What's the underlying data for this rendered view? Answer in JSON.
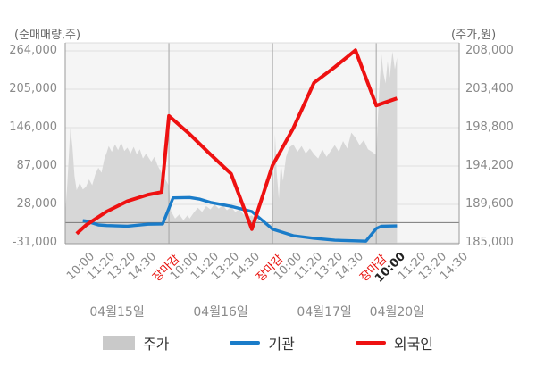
{
  "chart_data": {
    "type": "mixed",
    "note": "x is a continuous tick index: 19 labeled ticks (5 per day, last day partial); day separators after each market close",
    "x_ticks": [
      {
        "label": "10:00",
        "type": "time"
      },
      {
        "label": "11:20",
        "type": "time"
      },
      {
        "label": "13:20",
        "type": "time"
      },
      {
        "label": "14:30",
        "type": "time"
      },
      {
        "label": "장마감",
        "type": "close"
      },
      {
        "label": "10:00",
        "type": "time"
      },
      {
        "label": "11:20",
        "type": "time"
      },
      {
        "label": "13:20",
        "type": "time"
      },
      {
        "label": "14:30",
        "type": "time"
      },
      {
        "label": "장마감",
        "type": "close"
      },
      {
        "label": "10:00",
        "type": "time"
      },
      {
        "label": "11:20",
        "type": "time"
      },
      {
        "label": "13:20",
        "type": "time"
      },
      {
        "label": "14:30",
        "type": "time"
      },
      {
        "label": "장마감",
        "type": "close"
      },
      {
        "label": "10:00",
        "type": "current"
      },
      {
        "label": "11:20",
        "type": "time"
      },
      {
        "label": "13:20",
        "type": "time"
      },
      {
        "label": "14:30",
        "type": "time"
      }
    ],
    "day_separators": [
      5,
      10,
      15
    ],
    "day_labels": [
      {
        "label": "04월15일",
        "center": 2.5
      },
      {
        "label": "04월16일",
        "center": 7.5
      },
      {
        "label": "04월17일",
        "center": 12.5
      },
      {
        "label": "04월20일",
        "center": 16
      }
    ],
    "left_axis": {
      "title": "(순매매량,주)",
      "ticks": [
        {
          "label": "264,000",
          "value": 264000
        },
        {
          "label": "205,000",
          "value": 205000
        },
        {
          "label": "146,000",
          "value": 146000
        },
        {
          "label": "87,000",
          "value": 87000
        },
        {
          "label": "28,000",
          "value": 28000
        },
        {
          "label": "-31,000",
          "value": -31000
        }
      ],
      "zero_line": 0
    },
    "right_axis": {
      "title": "(주가,원)",
      "ticks": [
        {
          "label": "208,000",
          "value": 208000
        },
        {
          "label": "203,400",
          "value": 203400
        },
        {
          "label": "198,800",
          "value": 198800
        },
        {
          "label": "194,200",
          "value": 194200
        },
        {
          "label": "189,600",
          "value": 189600
        },
        {
          "label": "185,000",
          "value": 185000
        }
      ]
    },
    "series": [
      {
        "name": "주가",
        "type": "area",
        "axis": "right",
        "color": "#d7d7d7",
        "points": [
          [
            0.0,
            188500
          ],
          [
            0.1,
            192000
          ],
          [
            0.25,
            198800
          ],
          [
            0.35,
            196500
          ],
          [
            0.45,
            193000
          ],
          [
            0.55,
            191300
          ],
          [
            0.7,
            192200
          ],
          [
            0.85,
            191400
          ],
          [
            1.0,
            191700
          ],
          [
            1.15,
            192600
          ],
          [
            1.3,
            191900
          ],
          [
            1.45,
            193200
          ],
          [
            1.6,
            194000
          ],
          [
            1.75,
            193400
          ],
          [
            1.9,
            195200
          ],
          [
            2.0,
            195800
          ],
          [
            2.1,
            196600
          ],
          [
            2.25,
            195900
          ],
          [
            2.4,
            196800
          ],
          [
            2.55,
            196100
          ],
          [
            2.7,
            197000
          ],
          [
            2.85,
            196000
          ],
          [
            3.0,
            196400
          ],
          [
            3.15,
            195700
          ],
          [
            3.3,
            196500
          ],
          [
            3.45,
            195600
          ],
          [
            3.6,
            196200
          ],
          [
            3.75,
            195100
          ],
          [
            3.9,
            195700
          ],
          [
            4.0,
            195300
          ],
          [
            4.15,
            194700
          ],
          [
            4.3,
            195300
          ],
          [
            4.45,
            194300
          ],
          [
            4.6,
            193600
          ],
          [
            4.75,
            192900
          ],
          [
            4.9,
            192300
          ],
          [
            5.0,
            191800
          ],
          [
            5.1,
            188800
          ],
          [
            5.3,
            187900
          ],
          [
            5.5,
            188400
          ],
          [
            5.7,
            187700
          ],
          [
            5.9,
            188300
          ],
          [
            6.0,
            187900
          ],
          [
            6.2,
            188600
          ],
          [
            6.4,
            189200
          ],
          [
            6.6,
            188700
          ],
          [
            6.8,
            189400
          ],
          [
            7.0,
            189000
          ],
          [
            7.2,
            189600
          ],
          [
            7.4,
            189100
          ],
          [
            7.6,
            189500
          ],
          [
            7.8,
            188900
          ],
          [
            8.0,
            189300
          ],
          [
            8.2,
            188700
          ],
          [
            8.4,
            189000
          ],
          [
            8.6,
            188400
          ],
          [
            8.8,
            188100
          ],
          [
            9.0,
            188300
          ],
          [
            9.2,
            187800
          ],
          [
            9.5,
            187400
          ],
          [
            9.8,
            187200
          ],
          [
            10.0,
            187300
          ],
          [
            10.07,
            193000
          ],
          [
            10.12,
            198000
          ],
          [
            10.2,
            193500
          ],
          [
            10.3,
            190300
          ],
          [
            10.4,
            194600
          ],
          [
            10.5,
            192400
          ],
          [
            10.65,
            195300
          ],
          [
            10.8,
            196400
          ],
          [
            11.0,
            196800
          ],
          [
            11.2,
            195900
          ],
          [
            11.4,
            196600
          ],
          [
            11.6,
            195700
          ],
          [
            11.8,
            196300
          ],
          [
            12.0,
            195600
          ],
          [
            12.2,
            195100
          ],
          [
            12.4,
            196200
          ],
          [
            12.6,
            195300
          ],
          [
            12.8,
            196000
          ],
          [
            13.0,
            196700
          ],
          [
            13.2,
            195900
          ],
          [
            13.4,
            197200
          ],
          [
            13.6,
            196300
          ],
          [
            13.8,
            198200
          ],
          [
            14.0,
            197600
          ],
          [
            14.2,
            196700
          ],
          [
            14.4,
            197300
          ],
          [
            14.6,
            196200
          ],
          [
            14.8,
            195900
          ],
          [
            15.0,
            195500
          ],
          [
            15.07,
            199500
          ],
          [
            15.15,
            203500
          ],
          [
            15.25,
            207600
          ],
          [
            15.35,
            205300
          ],
          [
            15.45,
            204100
          ],
          [
            15.55,
            206800
          ],
          [
            15.65,
            204800
          ],
          [
            15.78,
            207900
          ],
          [
            15.9,
            205800
          ],
          [
            16.0,
            207200
          ]
        ]
      },
      {
        "name": "기관",
        "type": "line",
        "axis": "left",
        "color": "#1a7cc9",
        "points": [
          [
            0.85,
            3000
          ],
          [
            1,
            2500
          ],
          [
            1.6,
            -3500
          ],
          [
            2,
            -4500
          ],
          [
            3,
            -5500
          ],
          [
            4,
            -2500
          ],
          [
            4.7,
            -2000
          ],
          [
            5.2,
            38000
          ],
          [
            6,
            38500
          ],
          [
            6.5,
            36000
          ],
          [
            7,
            31000
          ],
          [
            8,
            25000
          ],
          [
            9,
            17000
          ],
          [
            10,
            -10000
          ],
          [
            11,
            -20000
          ],
          [
            12,
            -24000
          ],
          [
            13,
            -27000
          ],
          [
            14,
            -28000
          ],
          [
            14.5,
            -28500
          ],
          [
            15,
            -9000
          ],
          [
            15.25,
            -5500
          ],
          [
            16,
            -5000
          ]
        ]
      },
      {
        "name": "외국인",
        "type": "line",
        "axis": "left",
        "color": "#ee1111",
        "points": [
          [
            0.55,
            -17000
          ],
          [
            1,
            -4000
          ],
          [
            2,
            17000
          ],
          [
            3,
            33000
          ],
          [
            4,
            43000
          ],
          [
            4.65,
            47000
          ],
          [
            5,
            164000
          ],
          [
            6,
            136000
          ],
          [
            7,
            105000
          ],
          [
            8,
            75000
          ],
          [
            9,
            -10000
          ],
          [
            10,
            88000
          ],
          [
            11,
            145000
          ],
          [
            12,
            215000
          ],
          [
            13,
            239000
          ],
          [
            14,
            265000
          ],
          [
            15,
            180000
          ],
          [
            16,
            191000
          ]
        ]
      }
    ]
  },
  "legend": {
    "items": [
      {
        "label": "주가",
        "swatch": "area",
        "color": "#c9c9c9"
      },
      {
        "label": "기관",
        "swatch": "line",
        "color": "#1a7cc9"
      },
      {
        "label": "외국인",
        "swatch": "line",
        "color": "#ee1111"
      }
    ]
  }
}
